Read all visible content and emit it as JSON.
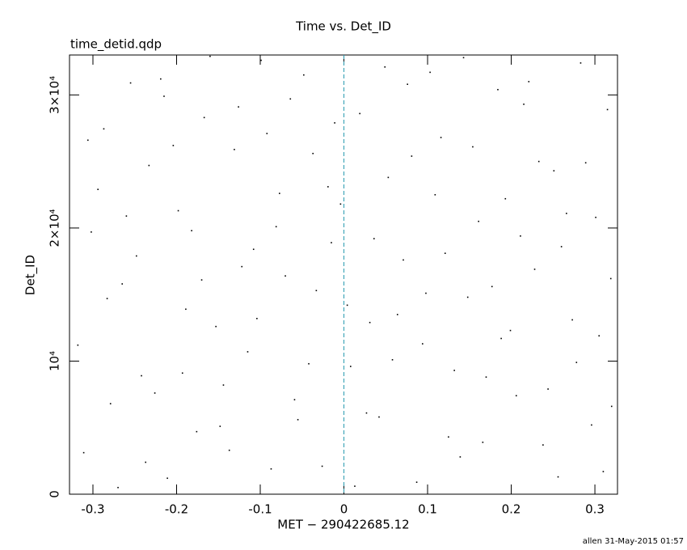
{
  "chart_data": {
    "type": "scatter",
    "title": "Time vs. Det_ID",
    "subtitle": "time_detid.qdp",
    "x_label": "MET − 290422685.12",
    "y_label": "Det_ID",
    "footer": "allen 31-May-2015 01:57",
    "xlim": [
      -0.328,
      0.327
    ],
    "ylim": [
      0,
      33000
    ],
    "xticks": [
      -0.3,
      -0.2,
      -0.1,
      0,
      0.1,
      0.2,
      0.3
    ],
    "yticks": [
      0,
      {
        "value": 10000,
        "label": "10⁴"
      },
      {
        "value": 20000,
        "label": "2×10⁴"
      },
      {
        "value": 30000,
        "label": "3×10⁴"
      }
    ],
    "reference_line": {
      "x": 0,
      "color": "#2a9bb0"
    },
    "series": [
      {
        "color": "#000000",
        "x": [
          -0.311,
          -0.287,
          -0.265,
          -0.242,
          -0.219,
          -0.198,
          -0.176,
          -0.153,
          -0.131,
          -0.108,
          -0.087,
          -0.064,
          -0.042,
          -0.019,
          0.004,
          0.027,
          0.049,
          0.071,
          0.094,
          0.116,
          0.139,
          0.161,
          0.184,
          0.206,
          0.228,
          0.251,
          0.273,
          0.296,
          0.315,
          -0.302,
          -0.279,
          -0.255,
          -0.233,
          -0.211,
          -0.189,
          -0.167,
          -0.144,
          -0.122,
          -0.099,
          -0.077,
          -0.055,
          -0.033,
          -0.011,
          0.013,
          0.036,
          0.058,
          0.081,
          0.103,
          0.125,
          0.148,
          0.17,
          0.193,
          0.215,
          0.238,
          0.26,
          0.283,
          0.305,
          0.319,
          -0.318,
          -0.294,
          -0.27,
          -0.248,
          -0.226,
          -0.204,
          -0.182,
          -0.16,
          -0.137,
          -0.115,
          -0.092,
          -0.07,
          -0.048,
          -0.026,
          -0.004,
          0.019,
          0.042,
          0.064,
          0.087,
          0.109,
          0.132,
          0.154,
          0.177,
          0.199,
          0.221,
          0.244,
          0.266,
          0.289,
          0.31,
          -0.306,
          -0.283,
          -0.26,
          -0.237,
          -0.215,
          -0.193,
          -0.17,
          -0.148,
          -0.126,
          -0.104,
          -0.081,
          -0.059,
          -0.037,
          -0.015,
          0.008,
          0.031,
          0.053,
          0.076,
          0.098,
          0.121,
          0.143,
          0.166,
          0.188,
          0.211,
          0.233,
          0.256,
          0.278,
          0.301,
          0.32
        ],
        "values": [
          3120,
          27450,
          15800,
          8900,
          31200,
          21300,
          4700,
          12600,
          25900,
          18400,
          1900,
          29700,
          9800,
          23100,
          14200,
          6100,
          32100,
          17600,
          11300,
          26800,
          2800,
          20500,
          30400,
          7400,
          16900,
          24300,
          13100,
          5200,
          28900,
          19700,
          6800,
          30900,
          24700,
          1200,
          13900,
          28300,
          8200,
          17100,
          32600,
          22600,
          5600,
          15300,
          27900,
          600,
          19200,
          10100,
          25400,
          31700,
          4300,
          14800,
          8800,
          22200,
          29300,
          3700,
          18600,
          32400,
          11900,
          16200,
          11200,
          22900,
          500,
          17900,
          7600,
          26200,
          19800,
          32900,
          3300,
          10700,
          27100,
          16400,
          31500,
          2100,
          21800,
          28600,
          5800,
          13500,
          900,
          22500,
          9300,
          26100,
          15600,
          12300,
          31000,
          7900,
          21100,
          24900,
          1700,
          26600,
          14700,
          20900,
          2400,
          29900,
          9100,
          16100,
          5100,
          29100,
          13200,
          20100,
          7100,
          25600,
          18900,
          9600,
          12900,
          23800,
          30800,
          15100,
          18100,
          32800,
          3900,
          11700,
          19400,
          25000,
          1300,
          9900,
          20800,
          6600
        ]
      }
    ]
  }
}
